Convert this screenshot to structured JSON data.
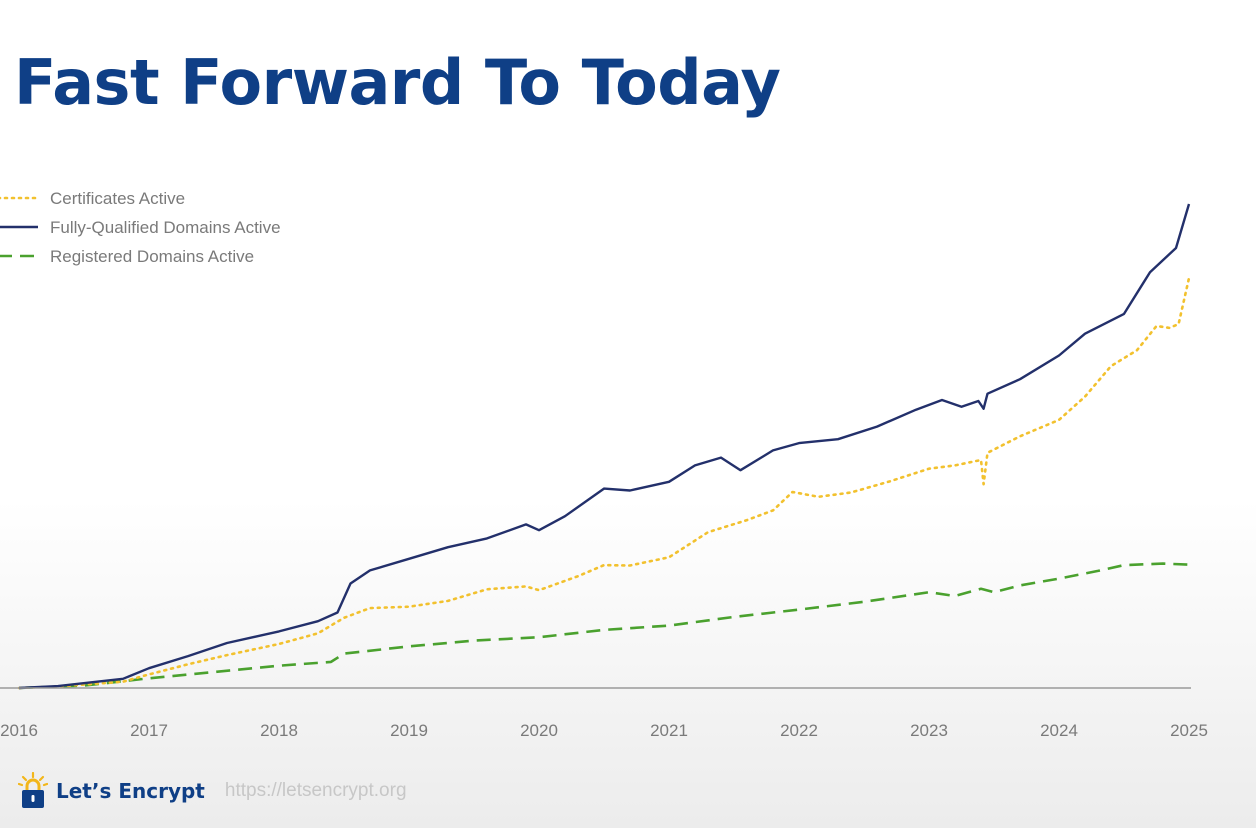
{
  "slide": {
    "title": "Fast Forward To Today"
  },
  "footer": {
    "brand": "Let’s Encrypt",
    "url": "https://letsencrypt.org",
    "logo_icon": "padlock-sun-icon"
  },
  "colors": {
    "title": "#0f3f86",
    "certificates": "#f2c12e",
    "fqdn": "#23306b",
    "registered": "#4aa12e",
    "axis": "#9a9a9a",
    "ticks": "#7a7a7a"
  },
  "chart_data": {
    "type": "line",
    "title": "",
    "xlabel": "",
    "ylabel": "",
    "xlim": [
      2016,
      2025
    ],
    "ylim": [
      0,
      100
    ],
    "y_axis_labels_shown": false,
    "grid": false,
    "legend_position": "top-left",
    "x_ticks": [
      "2016",
      "2017",
      "2018",
      "2019",
      "2020",
      "2021",
      "2022",
      "2023",
      "2024",
      "2025"
    ],
    "series": [
      {
        "name": "Certificates Active",
        "style": "dotted",
        "color": "#f2c12e",
        "points": [
          [
            2016.0,
            0
          ],
          [
            2016.3,
            0.3
          ],
          [
            2016.6,
            0.9
          ],
          [
            2016.8,
            1.3
          ],
          [
            2017.0,
            2.8
          ],
          [
            2017.3,
            4.9
          ],
          [
            2017.6,
            6.8
          ],
          [
            2018.0,
            9.1
          ],
          [
            2018.3,
            11.3
          ],
          [
            2018.5,
            14.5
          ],
          [
            2018.7,
            16.5
          ],
          [
            2019.0,
            16.8
          ],
          [
            2019.3,
            18.0
          ],
          [
            2019.6,
            20.4
          ],
          [
            2019.9,
            21.0
          ],
          [
            2020.0,
            20.2
          ],
          [
            2020.3,
            23.1
          ],
          [
            2020.5,
            25.4
          ],
          [
            2020.7,
            25.3
          ],
          [
            2021.0,
            27.0
          ],
          [
            2021.3,
            32.2
          ],
          [
            2021.6,
            34.7
          ],
          [
            2021.8,
            36.7
          ],
          [
            2021.95,
            40.5
          ],
          [
            2022.15,
            39.5
          ],
          [
            2022.4,
            40.4
          ],
          [
            2022.7,
            42.7
          ],
          [
            2023.0,
            45.3
          ],
          [
            2023.2,
            46.0
          ],
          [
            2023.4,
            47.1
          ],
          [
            2023.42,
            42.1
          ],
          [
            2023.45,
            48.6
          ],
          [
            2023.7,
            52.0
          ],
          [
            2024.0,
            55.4
          ],
          [
            2024.2,
            60.2
          ],
          [
            2024.4,
            66.5
          ],
          [
            2024.6,
            69.8
          ],
          [
            2024.75,
            74.8
          ],
          [
            2024.85,
            74.4
          ],
          [
            2024.92,
            75.2
          ],
          [
            2025.0,
            84.7
          ]
        ]
      },
      {
        "name": "Fully-Qualified Domains Active",
        "style": "solid",
        "color": "#23306b",
        "points": [
          [
            2016.0,
            0
          ],
          [
            2016.3,
            0.4
          ],
          [
            2016.6,
            1.3
          ],
          [
            2016.8,
            1.9
          ],
          [
            2017.0,
            4.1
          ],
          [
            2017.3,
            6.6
          ],
          [
            2017.6,
            9.3
          ],
          [
            2018.0,
            11.7
          ],
          [
            2018.3,
            13.8
          ],
          [
            2018.45,
            15.6
          ],
          [
            2018.55,
            21.6
          ],
          [
            2018.7,
            24.3
          ],
          [
            2019.0,
            26.7
          ],
          [
            2019.3,
            29.1
          ],
          [
            2019.6,
            30.9
          ],
          [
            2019.9,
            33.8
          ],
          [
            2020.0,
            32.6
          ],
          [
            2020.2,
            35.5
          ],
          [
            2020.5,
            41.2
          ],
          [
            2020.7,
            40.8
          ],
          [
            2021.0,
            42.6
          ],
          [
            2021.2,
            46.0
          ],
          [
            2021.4,
            47.6
          ],
          [
            2021.55,
            45.0
          ],
          [
            2021.8,
            49.1
          ],
          [
            2022.0,
            50.6
          ],
          [
            2022.3,
            51.4
          ],
          [
            2022.6,
            54.0
          ],
          [
            2022.9,
            57.5
          ],
          [
            2023.1,
            59.5
          ],
          [
            2023.25,
            58.1
          ],
          [
            2023.38,
            59.3
          ],
          [
            2023.42,
            57.7
          ],
          [
            2023.45,
            60.8
          ],
          [
            2023.7,
            63.8
          ],
          [
            2024.0,
            68.7
          ],
          [
            2024.2,
            73.2
          ],
          [
            2024.5,
            77.3
          ],
          [
            2024.7,
            85.9
          ],
          [
            2024.9,
            90.9
          ],
          [
            2025.0,
            100
          ]
        ]
      },
      {
        "name": "Registered Domains Active",
        "style": "dashed",
        "color": "#4aa12e",
        "points": [
          [
            2016.0,
            0
          ],
          [
            2016.5,
            0.5
          ],
          [
            2017.0,
            2.0
          ],
          [
            2017.5,
            3.3
          ],
          [
            2018.0,
            4.6
          ],
          [
            2018.4,
            5.4
          ],
          [
            2018.5,
            7.1
          ],
          [
            2019.0,
            8.6
          ],
          [
            2019.5,
            9.8
          ],
          [
            2020.0,
            10.5
          ],
          [
            2020.5,
            12.0
          ],
          [
            2021.0,
            12.9
          ],
          [
            2021.5,
            14.7
          ],
          [
            2022.0,
            16.2
          ],
          [
            2022.5,
            17.8
          ],
          [
            2023.0,
            19.8
          ],
          [
            2023.2,
            19.0
          ],
          [
            2023.4,
            20.5
          ],
          [
            2023.5,
            19.8
          ],
          [
            2023.7,
            21.2
          ],
          [
            2024.0,
            22.6
          ],
          [
            2024.3,
            24.2
          ],
          [
            2024.5,
            25.4
          ],
          [
            2024.8,
            25.7
          ],
          [
            2025.0,
            25.5
          ]
        ]
      }
    ]
  }
}
